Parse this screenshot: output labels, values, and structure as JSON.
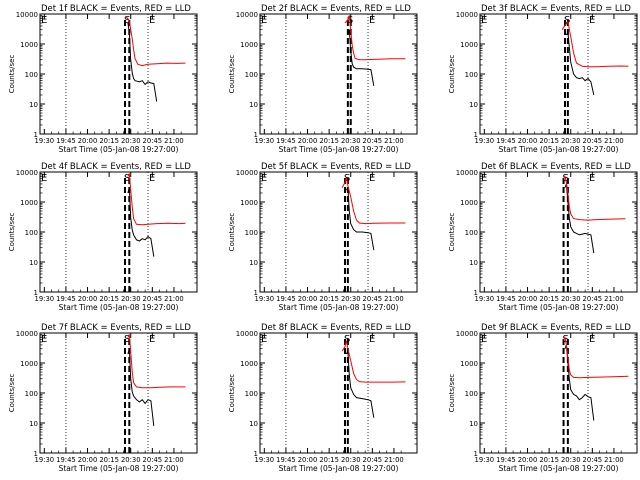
{
  "chart_data": {
    "type": "line",
    "layout": "3x3 grid",
    "ylabel": "Counts/sec",
    "xlabel": "Start Time (05-Jan-08 19:27:00)",
    "yscale": "log",
    "ylim": [
      1,
      10000
    ],
    "y_ticks": [
      "1",
      "10",
      "100",
      "1000",
      "10000"
    ],
    "x_ticks": [
      "19:30",
      "19:45",
      "20:00",
      "20:15",
      "20:30",
      "20:45",
      "21:00"
    ],
    "x_tick_minutes": [
      0,
      15,
      30,
      45,
      60,
      75,
      90
    ],
    "xlim_minutes": [
      -3,
      106
    ],
    "colors": {
      "events": "#000000",
      "lld": "#ff0000"
    },
    "panels": [
      {
        "title": "Det 1f BLACK = Events, RED = LLD",
        "corner_letter": "E",
        "peak_letter": "S",
        "end_letter": "E",
        "dashed_x": [
          56,
          59
        ],
        "dotted_x": [
          15,
          72
        ],
        "red": [
          [
            57,
            8000
          ],
          [
            59,
            6000
          ],
          [
            61,
            1500
          ],
          [
            62,
            650
          ],
          [
            63,
            320
          ],
          [
            65,
            210
          ],
          [
            68,
            190
          ],
          [
            72,
            210
          ],
          [
            78,
            220
          ],
          [
            85,
            230
          ],
          [
            92,
            225
          ],
          [
            98,
            230
          ]
        ],
        "black": [
          [
            58,
            5000
          ],
          [
            59,
            2500
          ],
          [
            60,
            300
          ],
          [
            61,
            110
          ],
          [
            62,
            70
          ],
          [
            63,
            60
          ],
          [
            66,
            55
          ],
          [
            68,
            60
          ],
          [
            70,
            45
          ],
          [
            72,
            55
          ],
          [
            74,
            50
          ],
          [
            76,
            48
          ],
          [
            78,
            12
          ]
        ]
      },
      {
        "title": "Det 2f BLACK = Events, RED = LLD",
        "corner_letter": "E",
        "peak_letter": "S",
        "end_letter": "E",
        "dashed_x": [
          58,
          60
        ],
        "dotted_x": [
          15,
          72
        ],
        "red": [
          [
            56,
            5000
          ],
          [
            58,
            6500
          ],
          [
            59,
            9000
          ],
          [
            60,
            3000
          ],
          [
            61,
            900
          ],
          [
            62,
            500
          ],
          [
            63,
            330
          ],
          [
            66,
            300
          ],
          [
            70,
            300
          ],
          [
            78,
            310
          ],
          [
            88,
            320
          ],
          [
            98,
            320
          ]
        ],
        "black": [
          [
            58,
            2000
          ],
          [
            59,
            3000
          ],
          [
            60,
            600
          ],
          [
            61,
            220
          ],
          [
            62,
            170
          ],
          [
            64,
            150
          ],
          [
            68,
            150
          ],
          [
            72,
            145
          ],
          [
            74,
            140
          ],
          [
            76,
            40
          ]
        ]
      },
      {
        "title": "Det 3f BLACK = Events, RED = LLD",
        "corner_letter": "E",
        "peak_letter": "S",
        "end_letter": "E",
        "dashed_x": [
          56,
          58
        ],
        "dotted_x": [
          15,
          72
        ],
        "red": [
          [
            54,
            3000
          ],
          [
            56,
            4200
          ],
          [
            58,
            5500
          ],
          [
            60,
            1800
          ],
          [
            62,
            500
          ],
          [
            64,
            230
          ],
          [
            68,
            180
          ],
          [
            72,
            175
          ],
          [
            78,
            175
          ],
          [
            86,
            180
          ],
          [
            95,
            185
          ],
          [
            100,
            180
          ]
        ],
        "black": [
          [
            57,
            2000
          ],
          [
            58,
            2500
          ],
          [
            59,
            800
          ],
          [
            60,
            250
          ],
          [
            62,
            100
          ],
          [
            64,
            75
          ],
          [
            66,
            70
          ],
          [
            68,
            75
          ],
          [
            70,
            60
          ],
          [
            72,
            70
          ],
          [
            74,
            55
          ],
          [
            76,
            20
          ]
        ]
      },
      {
        "title": "Det 4f BLACK = Events, RED = LLD",
        "corner_letter": "E",
        "peak_letter": "S",
        "end_letter": "E",
        "dashed_x": [
          56,
          59
        ],
        "dotted_x": [
          15,
          72
        ],
        "red": [
          [
            58,
            7000
          ],
          [
            59,
            9000
          ],
          [
            60,
            2500
          ],
          [
            61,
            700
          ],
          [
            62,
            280
          ],
          [
            64,
            180
          ],
          [
            68,
            175
          ],
          [
            72,
            180
          ],
          [
            78,
            190
          ],
          [
            86,
            195
          ],
          [
            94,
            190
          ],
          [
            98,
            195
          ]
        ],
        "black": [
          [
            58,
            2000
          ],
          [
            59,
            3000
          ],
          [
            60,
            300
          ],
          [
            61,
            120
          ],
          [
            62,
            80
          ],
          [
            64,
            55
          ],
          [
            66,
            50
          ],
          [
            68,
            60
          ],
          [
            70,
            55
          ],
          [
            72,
            70
          ],
          [
            74,
            60
          ],
          [
            76,
            15
          ]
        ]
      },
      {
        "title": "Det 5f BLACK = Events, RED = LLD",
        "corner_letter": "E",
        "peak_letter": "S",
        "end_letter": "E",
        "dashed_x": [
          56,
          58
        ],
        "dotted_x": [
          15,
          72
        ],
        "red": [
          [
            54,
            3000
          ],
          [
            56,
            4500
          ],
          [
            57,
            6500
          ],
          [
            58,
            3500
          ],
          [
            60,
            1500
          ],
          [
            62,
            500
          ],
          [
            64,
            250
          ],
          [
            66,
            200
          ],
          [
            70,
            190
          ],
          [
            76,
            195
          ],
          [
            86,
            200
          ],
          [
            98,
            200
          ]
        ],
        "black": [
          [
            57,
            2500
          ],
          [
            58,
            3000
          ],
          [
            59,
            500
          ],
          [
            60,
            190
          ],
          [
            62,
            120
          ],
          [
            64,
            100
          ],
          [
            68,
            100
          ],
          [
            72,
            95
          ],
          [
            74,
            90
          ],
          [
            76,
            25
          ]
        ]
      },
      {
        "title": "Det 6f BLACK = Events, RED = LLD",
        "corner_letter": "E",
        "peak_letter": "S",
        "end_letter": "E",
        "dashed_x": [
          55,
          58
        ],
        "dotted_x": [
          15,
          72
        ],
        "red": [
          [
            55,
            6000
          ],
          [
            56,
            7000
          ],
          [
            57,
            4500
          ],
          [
            58,
            2000
          ],
          [
            59,
            700
          ],
          [
            60,
            400
          ],
          [
            62,
            280
          ],
          [
            66,
            260
          ],
          [
            72,
            250
          ],
          [
            78,
            260
          ],
          [
            88,
            270
          ],
          [
            98,
            275
          ]
        ],
        "black": [
          [
            56,
            3000
          ],
          [
            57,
            4000
          ],
          [
            58,
            1000
          ],
          [
            59,
            300
          ],
          [
            60,
            150
          ],
          [
            62,
            100
          ],
          [
            64,
            90
          ],
          [
            66,
            80
          ],
          [
            70,
            90
          ],
          [
            72,
            85
          ],
          [
            74,
            80
          ],
          [
            76,
            20
          ]
        ]
      },
      {
        "title": "Det 7f BLACK = Events, RED = LLD",
        "corner_letter": "E",
        "peak_letter": "S",
        "end_letter": "E",
        "dashed_x": [
          56,
          59
        ],
        "dotted_x": [
          15,
          72
        ],
        "red": [
          [
            58,
            7000
          ],
          [
            59,
            9000
          ],
          [
            60,
            2500
          ],
          [
            61,
            500
          ],
          [
            62,
            220
          ],
          [
            64,
            160
          ],
          [
            68,
            150
          ],
          [
            74,
            150
          ],
          [
            80,
            155
          ],
          [
            88,
            160
          ],
          [
            98,
            160
          ]
        ],
        "black": [
          [
            58,
            2000
          ],
          [
            59,
            3000
          ],
          [
            60,
            300
          ],
          [
            61,
            110
          ],
          [
            62,
            80
          ],
          [
            64,
            60
          ],
          [
            66,
            50
          ],
          [
            68,
            60
          ],
          [
            70,
            45
          ],
          [
            72,
            60
          ],
          [
            74,
            55
          ],
          [
            76,
            8
          ]
        ]
      },
      {
        "title": "Det 8f BLACK = Events, RED = LLD",
        "corner_letter": "E",
        "peak_letter": "S",
        "end_letter": "E",
        "dashed_x": [
          56,
          58
        ],
        "dotted_x": [
          15,
          72
        ],
        "red": [
          [
            54,
            2500
          ],
          [
            56,
            3500
          ],
          [
            57,
            5500
          ],
          [
            58,
            3000
          ],
          [
            60,
            1200
          ],
          [
            62,
            450
          ],
          [
            64,
            280
          ],
          [
            66,
            240
          ],
          [
            70,
            230
          ],
          [
            78,
            230
          ],
          [
            88,
            230
          ],
          [
            98,
            235
          ]
        ],
        "black": [
          [
            57,
            2000
          ],
          [
            58,
            2500
          ],
          [
            59,
            400
          ],
          [
            60,
            150
          ],
          [
            62,
            90
          ],
          [
            64,
            70
          ],
          [
            68,
            65
          ],
          [
            72,
            60
          ],
          [
            74,
            55
          ],
          [
            76,
            15
          ]
        ]
      },
      {
        "title": "Det 9f BLACK = Events, RED = LLD",
        "corner_letter": "E",
        "peak_letter": "S",
        "end_letter": "E",
        "dashed_x": [
          55,
          58
        ],
        "dotted_x": [
          15,
          72
        ],
        "red": [
          [
            55,
            6000
          ],
          [
            56,
            7000
          ],
          [
            57,
            4000
          ],
          [
            58,
            1500
          ],
          [
            59,
            600
          ],
          [
            60,
            400
          ],
          [
            62,
            330
          ],
          [
            66,
            320
          ],
          [
            72,
            330
          ],
          [
            80,
            340
          ],
          [
            90,
            350
          ],
          [
            100,
            360
          ]
        ],
        "black": [
          [
            56,
            3000
          ],
          [
            57,
            4000
          ],
          [
            58,
            1000
          ],
          [
            59,
            300
          ],
          [
            60,
            130
          ],
          [
            62,
            90
          ],
          [
            64,
            80
          ],
          [
            66,
            60
          ],
          [
            68,
            70
          ],
          [
            70,
            90
          ],
          [
            72,
            75
          ],
          [
            74,
            70
          ],
          [
            76,
            12
          ]
        ]
      }
    ]
  }
}
